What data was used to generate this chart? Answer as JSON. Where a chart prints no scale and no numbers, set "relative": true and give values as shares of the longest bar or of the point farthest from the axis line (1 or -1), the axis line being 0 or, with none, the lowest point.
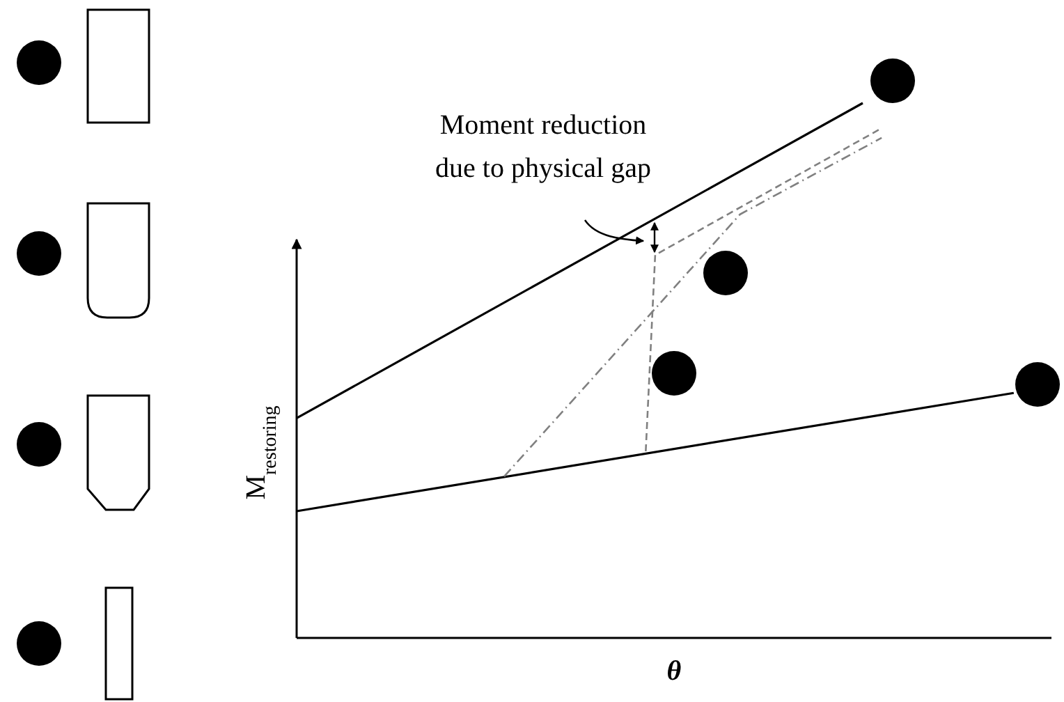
{
  "chart_data": {
    "type": "line",
    "relative": true,
    "xlabel": "θ",
    "ylabel": "M$_{restoring}$",
    "annotations": [
      "Moment reduction\ndue to physical gap"
    ],
    "categories": [
      null,
      null,
      null,
      null,
      null,
      null,
      null,
      null,
      null,
      null,
      null,
      null,
      null,
      null,
      null,
      null,
      null,
      null,
      null,
      null,
      null,
      null,
      null,
      null,
      null,
      null,
      null,
      null,
      null,
      null,
      null,
      null,
      null,
      null,
      null,
      null,
      null,
      null,
      null,
      null,
      null,
      null,
      null,
      null,
      null,
      null,
      null,
      null,
      null,
      null,
      null,
      null,
      null,
      null,
      null,
      null,
      null,
      null,
      null,
      null,
      null,
      null,
      null,
      null,
      null,
      null,
      null,
      null,
      null,
      null,
      null,
      null,
      null,
      null,
      null,
      null,
      null,
      null,
      null,
      null,
      null
    ],
    "series": [
      {
        "color": "#000000",
        "line_style": "solid",
        "values": [
          0.411,
          null,
          null,
          null,
          null,
          null,
          null,
          null,
          null,
          null,
          null,
          null,
          null,
          null,
          null,
          null,
          null,
          null,
          null,
          null,
          null,
          null,
          null,
          null,
          null,
          null,
          null,
          null,
          null,
          null,
          null,
          null,
          null,
          null,
          null,
          null,
          null,
          null,
          null,
          null,
          null,
          null,
          null,
          null,
          null,
          null,
          null,
          null,
          null,
          null,
          null,
          null,
          null,
          null,
          null,
          null,
          null,
          null,
          null,
          null,
          1,
          null,
          null,
          null,
          null,
          null,
          null,
          null,
          null,
          null,
          null,
          null,
          null,
          null,
          null,
          null,
          null,
          null,
          null,
          null,
          null
        ]
      },
      {
        "color": "#000000",
        "line_style": "solid",
        "values": [
          0.237,
          null,
          null,
          null,
          null,
          null,
          null,
          null,
          null,
          null,
          null,
          null,
          null,
          null,
          null,
          null,
          null,
          null,
          null,
          null,
          null,
          null,
          null,
          null,
          null,
          null,
          null,
          null,
          null,
          null,
          null,
          null,
          null,
          null,
          null,
          null,
          null,
          null,
          null,
          null,
          null,
          null,
          null,
          null,
          null,
          null,
          null,
          null,
          null,
          null,
          null,
          null,
          null,
          null,
          null,
          null,
          null,
          null,
          null,
          null,
          null,
          null,
          null,
          null,
          null,
          null,
          null,
          null,
          null,
          null,
          null,
          null,
          null,
          null,
          null,
          null,
          0.458,
          null,
          null,
          null,
          null
        ]
      },
      {
        "color": "#808080",
        "line_style": "dashed",
        "values": [
          null,
          null,
          null,
          null,
          null,
          null,
          null,
          null,
          null,
          null,
          null,
          null,
          null,
          null,
          null,
          null,
          null,
          null,
          null,
          null,
          null,
          null,
          null,
          null,
          null,
          null,
          null,
          null,
          null,
          null,
          null,
          null,
          null,
          null,
          null,
          null,
          null,
          0.349,
          0.716,
          null,
          null,
          null,
          null,
          null,
          null,
          null,
          null,
          null,
          null,
          null,
          null,
          null,
          null,
          null,
          null,
          null,
          null,
          null,
          null,
          null,
          null,
          null,
          0.953,
          null,
          null,
          null,
          null,
          null,
          null,
          null,
          null,
          null,
          null,
          null,
          null,
          null,
          null,
          null,
          null,
          null,
          null
        ]
      },
      {
        "color": "#808080",
        "line_style": "dashdot",
        "values": [
          null,
          null,
          null,
          null,
          null,
          null,
          null,
          null,
          null,
          null,
          null,
          null,
          null,
          null,
          null,
          null,
          null,
          null,
          null,
          null,
          null,
          null,
          0.302,
          null,
          null,
          null,
          null,
          null,
          null,
          null,
          null,
          null,
          null,
          null,
          null,
          null,
          null,
          null,
          null,
          null,
          null,
          null,
          null,
          null,
          null,
          null,
          null,
          0.792,
          null,
          null,
          null,
          null,
          null,
          null,
          null,
          null,
          null,
          null,
          null,
          null,
          null,
          null,
          0.935,
          null,
          null,
          null,
          null,
          null,
          null,
          null,
          null,
          null,
          null,
          null,
          null,
          null,
          null,
          null,
          null,
          null,
          null
        ]
      }
    ]
  }
}
